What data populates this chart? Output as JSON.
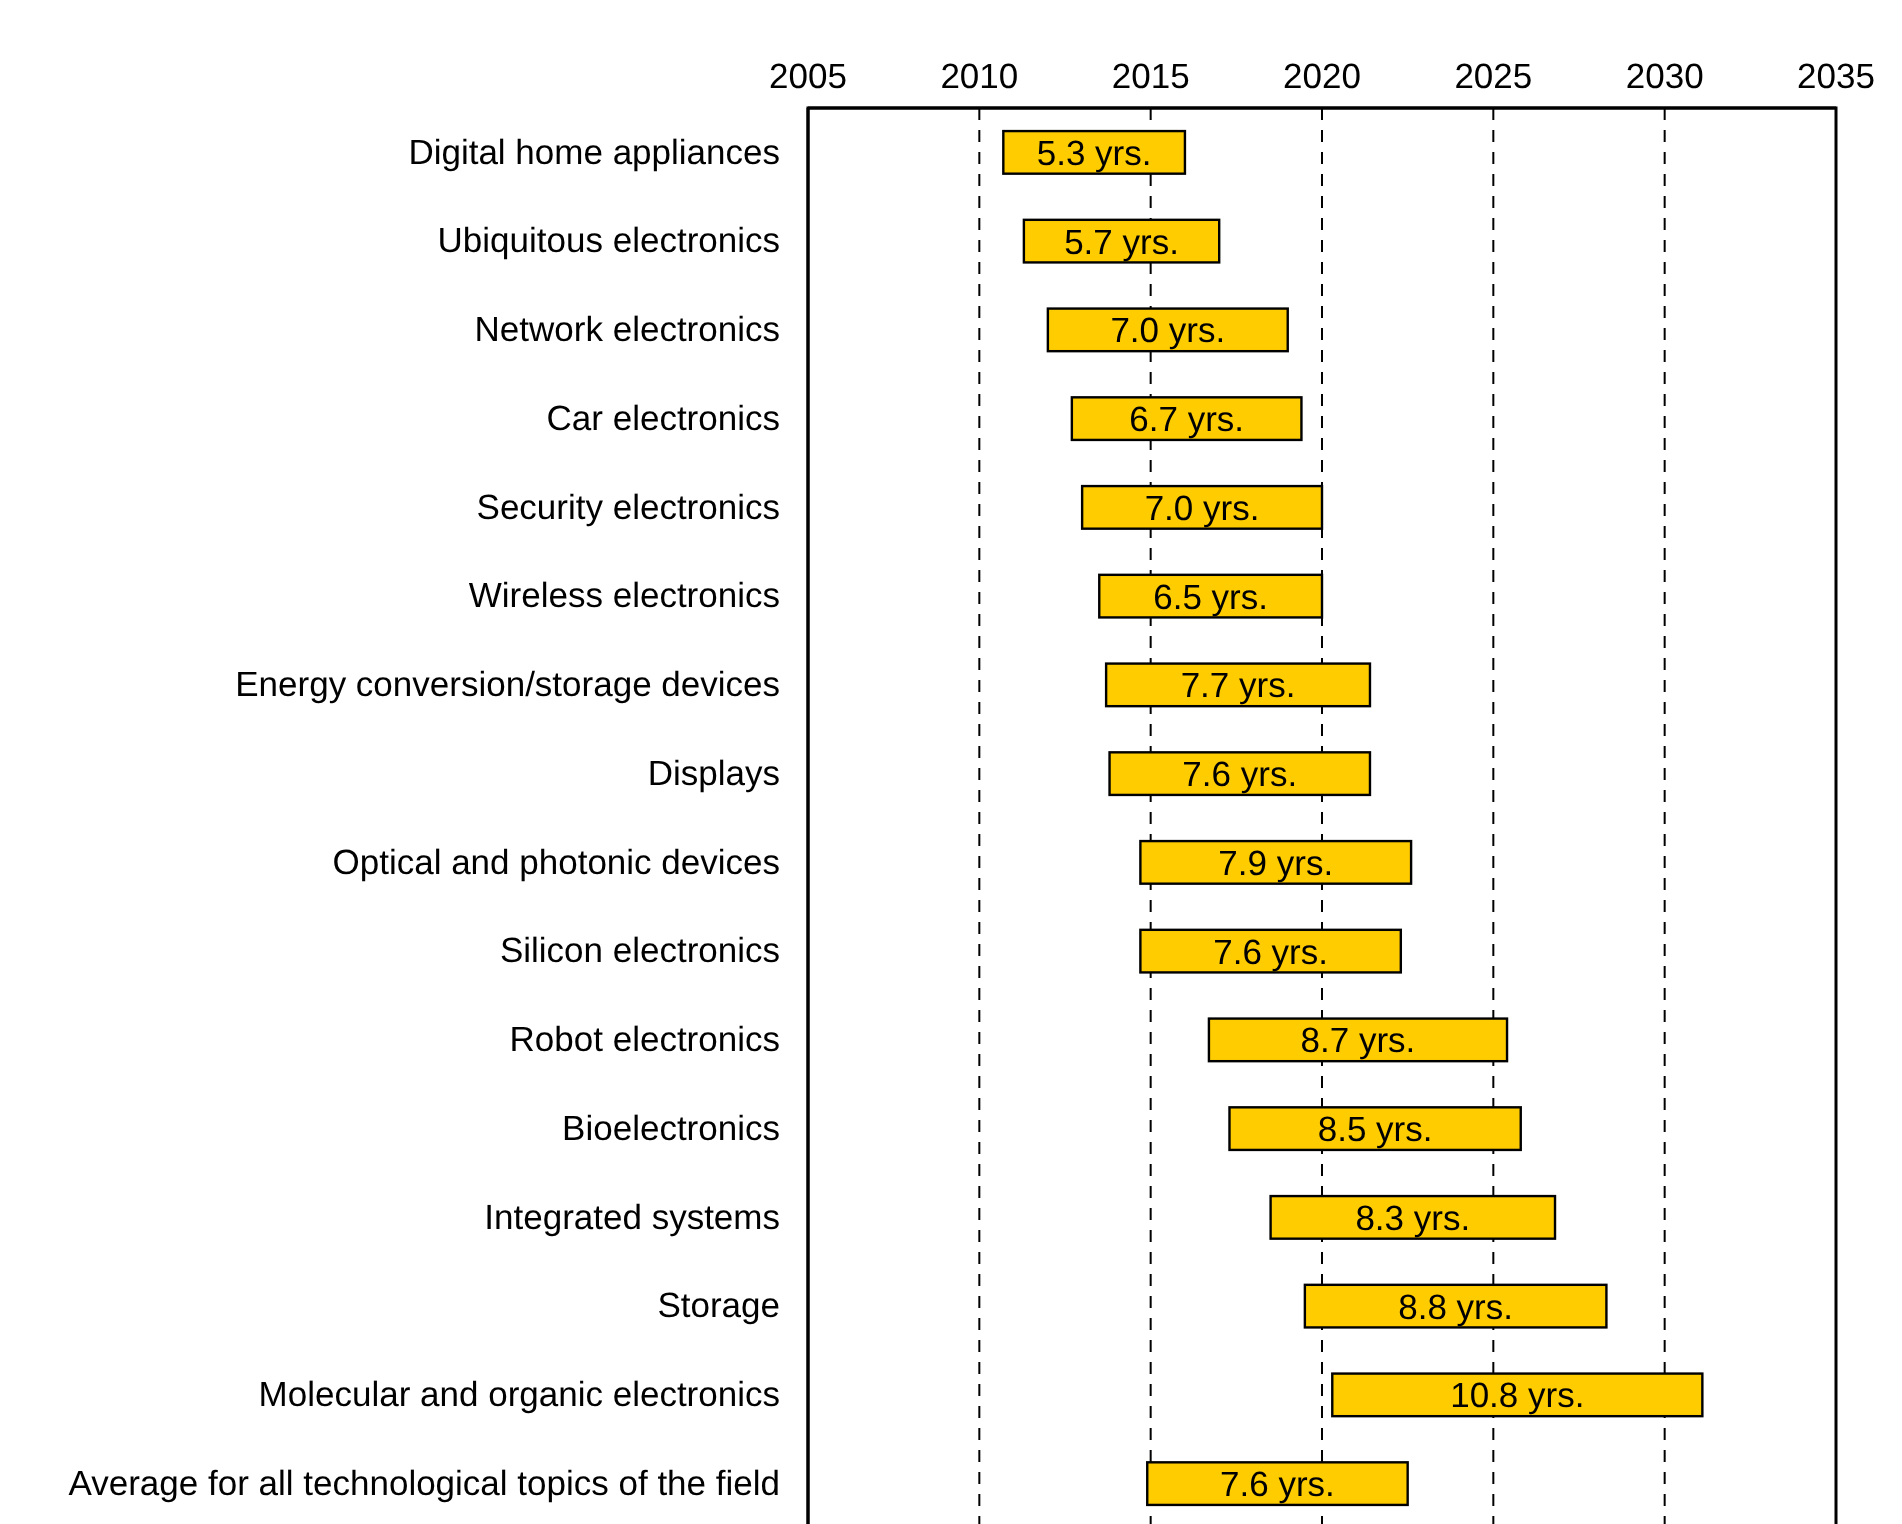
{
  "chart_data": {
    "type": "bar",
    "orientation": "horizontal",
    "categories": [
      "Digital home appliances",
      "Ubiquitous electronics",
      "Network electronics",
      "Car electronics",
      "Security electronics",
      "Wireless electronics",
      "Energy conversion/storage devices",
      "Displays",
      "Optical and photonic devices",
      "Silicon electronics",
      "Robot electronics",
      "Bioelectronics",
      "Integrated systems",
      "Storage",
      "Molecular and organic electronics",
      "Average for all technological topics of the field"
    ],
    "base": [
      2010.7,
      2011.3,
      2012.0,
      2012.7,
      2013.0,
      2013.5,
      2013.7,
      2013.8,
      2014.7,
      2014.7,
      2016.7,
      2017.3,
      2018.5,
      2019.5,
      2020.3,
      2014.9
    ],
    "values": [
      5.3,
      5.7,
      7.0,
      6.7,
      7.0,
      6.5,
      7.7,
      7.6,
      7.9,
      7.6,
      8.7,
      8.5,
      8.3,
      8.8,
      10.8,
      7.6
    ],
    "value_labels": [
      "5.3 yrs.",
      "5.7 yrs.",
      "7.0 yrs.",
      "6.7 yrs.",
      "7.0 yrs.",
      "6.5 yrs.",
      "7.7 yrs.",
      "7.6 yrs.",
      "7.9 yrs.",
      "7.6 yrs.",
      "8.7 yrs.",
      "8.5 yrs.",
      "8.3 yrs.",
      "8.8 yrs.",
      "10.8 yrs.",
      "7.6 yrs."
    ],
    "color": "#ffcc00",
    "xlim": [
      2005,
      2035
    ],
    "xticks": [
      2005,
      2010,
      2015,
      2020,
      2025,
      2030,
      2035
    ],
    "grid": "x"
  }
}
